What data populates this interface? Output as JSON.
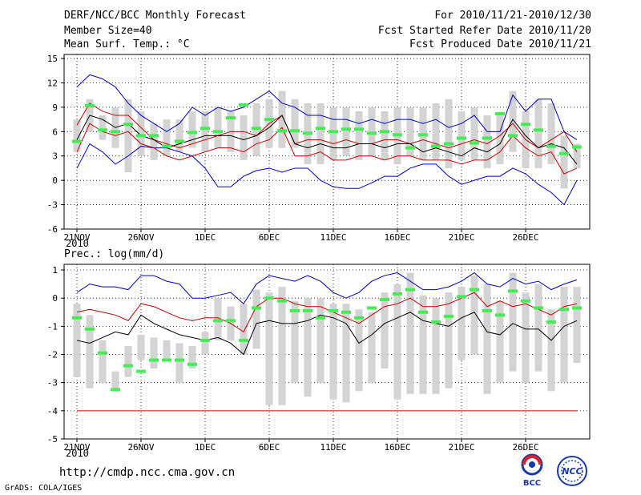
{
  "header": {
    "title": "DERF/NCC/BCC Monthly Forecast",
    "member_size": "Member Size=40",
    "variable": "Mean Surf. Temp.: °C",
    "period": "For 2010/11/21-2010/12/30",
    "started": "Fcst Started Refer Date 2010/11/20",
    "produced": "Fcst Produced Date 2010/11/21"
  },
  "footer": {
    "url": "http://cmdp.ncc.cma.gov.cn",
    "credit": "GrADS: COLA/IGES",
    "logo_bcc": "BCC",
    "logo_ncc": "NCC"
  },
  "colors": {
    "max_line": "#0000cc",
    "upper_line": "#cc0000",
    "mean_line": "#000000",
    "box": "#d3d3d3",
    "obs_marker": "#44ee55"
  },
  "chart_data": [
    {
      "type": "line",
      "title": "Mean Surf. Temp.: °C",
      "year_label": "2010",
      "ylim": [
        -6,
        15.5
      ],
      "yticks": [
        15,
        12,
        9,
        6,
        3,
        0,
        -3,
        -6
      ],
      "xtick_labels": [
        "21NOV",
        "26NOV",
        "1DEC",
        "6DEC",
        "11DEC",
        "16DEC",
        "21DEC",
        "26DEC"
      ],
      "xtick_days": [
        1,
        6,
        11,
        16,
        21,
        26,
        31,
        36
      ],
      "x": [
        1,
        2,
        3,
        4,
        5,
        6,
        7,
        8,
        9,
        10,
        11,
        12,
        13,
        14,
        15,
        16,
        17,
        18,
        19,
        20,
        21,
        22,
        23,
        24,
        25,
        26,
        27,
        28,
        29,
        30,
        31,
        32,
        33,
        34,
        35,
        36,
        37,
        38,
        39,
        40
      ],
      "series": [
        {
          "name": "max",
          "values": [
            1.5,
            4.5,
            3.5,
            2,
            3,
            4.2,
            4,
            4,
            3.5,
            3,
            1.5,
            -0.8,
            -0.8,
            0.5,
            1.2,
            1.5,
            1,
            1.5,
            1.5,
            0,
            -0.8,
            -1,
            -1,
            -0.3,
            0.5,
            0.5,
            1.5,
            2,
            2,
            0.5,
            -0.5,
            0,
            0.5,
            0.5,
            1.5,
            0.8,
            -0.5,
            -1.5,
            -3,
            0
          ]
        },
        {
          "name": "upper",
          "values": [
            6.8,
            9.5,
            8.5,
            8,
            8,
            6.5,
            5,
            4.5,
            4,
            4.5,
            5,
            5.5,
            6,
            6,
            5.5,
            7,
            8,
            4.5,
            5,
            5,
            4.5,
            5,
            4.5,
            4.5,
            5,
            5,
            4.5,
            5,
            4.5,
            4,
            4.5,
            5,
            4.5,
            5.5,
            7,
            5,
            4,
            5,
            6,
            3.5
          ]
        },
        {
          "name": "mean",
          "values": [
            5,
            8,
            7.5,
            6.5,
            7,
            5.5,
            5,
            4,
            4.5,
            5,
            5.5,
            5.5,
            5.5,
            5,
            5.5,
            6.5,
            8,
            4.5,
            4,
            4.5,
            4,
            4,
            4.5,
            4.5,
            4,
            4.5,
            4.5,
            3.5,
            4,
            3.5,
            3,
            4,
            3.5,
            4.5,
            7.5,
            5.5,
            4,
            4.5,
            4,
            2
          ]
        },
        {
          "name": "lower",
          "values": [
            3.5,
            7,
            6,
            5.5,
            6,
            4.5,
            4,
            3,
            2.5,
            3,
            3.5,
            4,
            4,
            3.5,
            4.5,
            5,
            6.5,
            3,
            3,
            3.5,
            2.5,
            2.5,
            3,
            3,
            2.5,
            3,
            3,
            2.5,
            2.5,
            2.5,
            2,
            2.5,
            2.5,
            3.5,
            5.5,
            4,
            3,
            3.5,
            0.8,
            1.5
          ]
        },
        {
          "name": "min",
          "values": [
            11.5,
            13,
            12.5,
            11.5,
            9.5,
            8,
            7,
            6,
            7,
            9,
            8,
            9,
            8.5,
            9,
            10,
            11,
            9.5,
            9,
            8,
            8,
            7.5,
            7.5,
            7,
            7.5,
            7,
            7.5,
            7.5,
            7,
            7.5,
            6.5,
            7,
            8,
            6,
            6,
            10.5,
            8.5,
            10,
            10,
            6,
            5
          ]
        }
      ],
      "boxes": [
        [
          3.5,
          7.5
        ],
        [
          6,
          10
        ],
        [
          5,
          8
        ],
        [
          4,
          9
        ],
        [
          1,
          10
        ],
        [
          3,
          8.5
        ],
        [
          2.5,
          7
        ],
        [
          3,
          7.5
        ],
        [
          3.5,
          7.5
        ],
        [
          4,
          8.5
        ],
        [
          3.5,
          8.5
        ],
        [
          4,
          9
        ],
        [
          3.5,
          8.5
        ],
        [
          2.5,
          8
        ],
        [
          3,
          9.5
        ],
        [
          4,
          10
        ],
        [
          4,
          11
        ],
        [
          4,
          10
        ],
        [
          2,
          9.5
        ],
        [
          2,
          9.5
        ],
        [
          2.5,
          9
        ],
        [
          3,
          9
        ],
        [
          2.5,
          8.5
        ],
        [
          3,
          9
        ],
        [
          2.5,
          8.5
        ],
        [
          2,
          9
        ],
        [
          3,
          9
        ],
        [
          2.5,
          9
        ],
        [
          2.5,
          9.5
        ],
        [
          1.5,
          10
        ],
        [
          2.5,
          8.5
        ],
        [
          2.5,
          9
        ],
        [
          1.5,
          8
        ],
        [
          2,
          8
        ],
        [
          3.5,
          11
        ],
        [
          1.5,
          8.5
        ],
        [
          1.5,
          10
        ],
        [
          2,
          9.5
        ],
        [
          -1,
          5.5
        ],
        [
          1.5,
          4.5
        ]
      ],
      "observed": [
        4.8,
        9.2,
        6.2,
        6,
        6.9,
        5.5,
        5.5,
        4.2,
        4.8,
        5.9,
        6.4,
        6,
        7.7,
        9.3,
        6.4,
        7.5,
        6.1,
        6.1,
        5.8,
        6.4,
        6,
        6.3,
        6.3,
        5.8,
        6,
        5.6,
        4,
        5.6,
        4.2,
        4.5,
        5.2,
        4.6,
        5.2,
        8.2,
        5.5,
        6.9,
        6.2,
        4.2,
        3.3,
        4.1
      ]
    },
    {
      "type": "line",
      "title": "Prec.: log(mm/d)",
      "year_label": "2010",
      "ylim": [
        -5,
        1.2
      ],
      "yticks": [
        1,
        0,
        -1,
        -2,
        -3,
        -4,
        -5
      ],
      "xtick_labels": [
        "21NOV",
        "26NOV",
        "1DEC",
        "6DEC",
        "11DEC",
        "16DEC",
        "21DEC",
        "26DEC"
      ],
      "xtick_days": [
        1,
        6,
        11,
        16,
        21,
        26,
        31,
        36
      ],
      "x": [
        1,
        2,
        3,
        4,
        5,
        6,
        7,
        8,
        9,
        10,
        11,
        12,
        13,
        14,
        15,
        16,
        17,
        18,
        19,
        20,
        21,
        22,
        23,
        24,
        25,
        26,
        27,
        28,
        29,
        30,
        31,
        32,
        33,
        34,
        35,
        36,
        37,
        38,
        39,
        40
      ],
      "series": [
        {
          "name": "max",
          "values": [
            0.2,
            0.5,
            0.4,
            0.4,
            0.3,
            0.8,
            0.8,
            0.6,
            0.5,
            0,
            0,
            0.1,
            0.2,
            -0.2,
            0.5,
            0.8,
            0.7,
            0.6,
            0.8,
            0.6,
            0.2,
            0,
            0.2,
            0.6,
            0.8,
            0.9,
            0.6,
            0.3,
            0.3,
            0.4,
            0.6,
            0.9,
            0.5,
            0.4,
            0.7,
            0.5,
            0.6,
            0.3,
            0.5,
            0.65
          ]
        },
        {
          "name": "upper",
          "values": [
            -0.5,
            -0.4,
            -0.5,
            -0.6,
            -0.8,
            -0.2,
            -0.3,
            -0.5,
            -0.7,
            -0.8,
            -0.7,
            -0.7,
            -0.9,
            -1.2,
            -0.3,
            0,
            0,
            -0.2,
            -0.3,
            -0.3,
            -0.5,
            -0.7,
            -0.9,
            -0.6,
            -0.3,
            -0.2,
            0,
            -0.3,
            -0.3,
            -0.2,
            0,
            0.2,
            -0.3,
            -0.1,
            -0.3,
            -0.2,
            -0.4,
            -0.6,
            -0.3,
            -0.2
          ]
        },
        {
          "name": "mean",
          "values": [
            -1.5,
            -1.6,
            -1.4,
            -1.2,
            -1.3,
            -0.6,
            -0.9,
            -1.1,
            -1.3,
            -1.4,
            -1.5,
            -1.4,
            -1.6,
            -2,
            -0.9,
            -0.8,
            -0.9,
            -0.9,
            -0.8,
            -0.6,
            -0.7,
            -0.9,
            -1.6,
            -1.3,
            -0.9,
            -0.7,
            -0.5,
            -0.8,
            -0.9,
            -1,
            -0.7,
            -0.5,
            -1.2,
            -1.3,
            -0.9,
            -1.1,
            -1.1,
            -1.5,
            -1,
            -0.8
          ]
        },
        {
          "name": "lower",
          "values": [
            -4,
            -4,
            -4,
            -4,
            -4,
            -4,
            -4,
            -4,
            -4,
            -4,
            -4,
            -4,
            -4,
            -4,
            -4,
            -4,
            -4,
            -4,
            -4,
            -4,
            -4,
            -4,
            -4,
            -4,
            -4,
            -4,
            -4,
            -4,
            -4,
            -4,
            -4,
            -4,
            -4,
            -4,
            -4,
            -4,
            -4,
            -4,
            -4,
            -4
          ]
        }
      ],
      "boxes": [
        [
          -2.8,
          -0.2
        ],
        [
          -3.2,
          -0.6
        ],
        [
          -3,
          -1.5
        ],
        [
          -3.2,
          -2.6
        ],
        [
          -2.8,
          -1.7
        ],
        [
          -2.2,
          -1.3
        ],
        [
          -2.5,
          -1.4
        ],
        [
          -2.2,
          -1.5
        ],
        [
          -3,
          -1.6
        ],
        [
          -2.5,
          -1.7
        ],
        [
          -2,
          -1.2
        ],
        [
          -1.5,
          0
        ],
        [
          -1.5,
          -0.3
        ],
        [
          -2,
          -0.2
        ],
        [
          -1.8,
          0.3
        ],
        [
          -3.8,
          0.2
        ],
        [
          -3.8,
          0.4
        ],
        [
          -3,
          -0.1
        ],
        [
          -3.5,
          0
        ],
        [
          -3,
          0
        ],
        [
          -3.6,
          -0.2
        ],
        [
          -3.7,
          -0.2
        ],
        [
          -3.3,
          -0.4
        ],
        [
          -3,
          -0.5
        ],
        [
          -2.5,
          0.2
        ],
        [
          -3.6,
          0.5
        ],
        [
          -3.4,
          0.9
        ],
        [
          -3.4,
          0.1
        ],
        [
          -3.4,
          0
        ],
        [
          -3.2,
          0.2
        ],
        [
          -2.2,
          0.4
        ],
        [
          -2,
          0.8
        ],
        [
          -3.4,
          0.5
        ],
        [
          -3,
          -0.1
        ],
        [
          -2.6,
          0.9
        ],
        [
          -3,
          0.2
        ],
        [
          -2.6,
          0.5
        ],
        [
          -3.3,
          -0.4
        ],
        [
          -3,
          0.4
        ],
        [
          -2.3,
          0.4
        ]
      ],
      "observed": [
        -0.7,
        -1.1,
        -1.95,
        -3.25,
        -2.4,
        -2.6,
        -2.2,
        -2.2,
        -2.2,
        -2.35,
        -1.5,
        -0.8,
        -0.8,
        -1.5,
        -0.35,
        0,
        -0.1,
        -0.45,
        -0.45,
        -0.7,
        -0.45,
        -0.5,
        -0.7,
        -0.35,
        -0.05,
        0.15,
        0.3,
        -0.5,
        -0.85,
        -0.65,
        0.05,
        0.3,
        -0.45,
        -0.6,
        0.25,
        -0.1,
        -0.35,
        -0.85,
        -0.4,
        -0.35
      ]
    }
  ]
}
